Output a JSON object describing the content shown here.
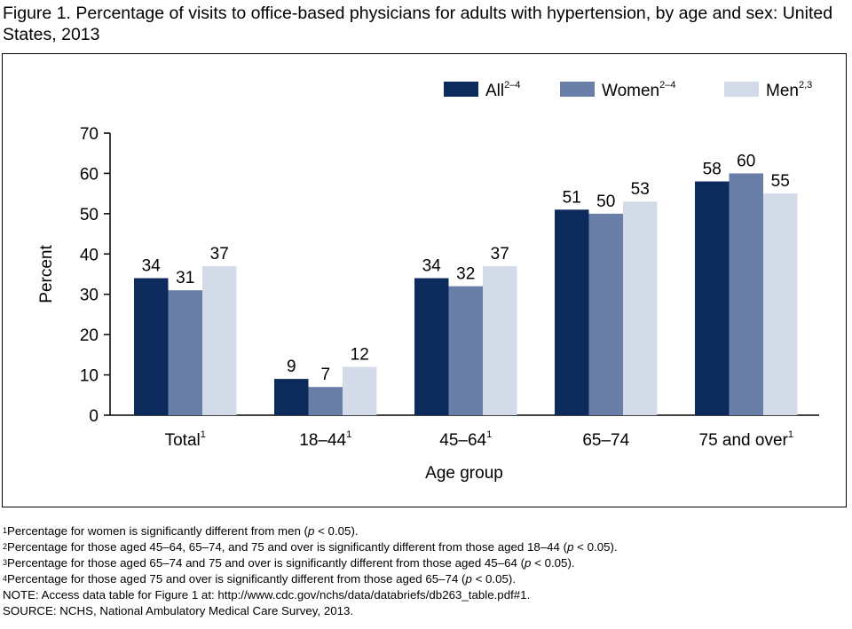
{
  "title": "Figure 1. Percentage of visits to office-based physicians for adults with hypertension, by age and sex: United States, 2013",
  "chart_data": {
    "type": "bar",
    "categories": [
      {
        "label": "Total",
        "sup": "1"
      },
      {
        "label": "18–44",
        "sup": "1"
      },
      {
        "label": "45–64",
        "sup": "1"
      },
      {
        "label": "65–74",
        "sup": ""
      },
      {
        "label": "75 and over",
        "sup": "1"
      }
    ],
    "series": [
      {
        "name": "All",
        "sup": "2–4",
        "color": "#0d2a5c",
        "values": [
          34,
          9,
          34,
          51,
          58
        ]
      },
      {
        "name": "Women",
        "sup": "2–4",
        "color": "#6a7fa8",
        "values": [
          31,
          7,
          32,
          50,
          60
        ]
      },
      {
        "name": "Men",
        "sup": "2,3",
        "color": "#d3dbe9",
        "values": [
          37,
          12,
          37,
          53,
          55
        ]
      }
    ],
    "xlabel": "Age group",
    "ylabel": "Percent",
    "ylim": [
      0,
      70
    ],
    "yticks": [
      "0",
      "10",
      "20",
      "30",
      "40",
      "50",
      "60",
      "70"
    ],
    "grid": false,
    "legend": "top-right"
  },
  "footnotes": [
    {
      "sup": "1",
      "parts": [
        {
          "t": "Percentage for women is significantly different from men ("
        },
        {
          "t": "p",
          "i": true
        },
        {
          "t": " < 0.05)."
        }
      ]
    },
    {
      "sup": "2",
      "parts": [
        {
          "t": "Percentage for those aged 45–64, 65–74, and 75 and over is significantly different from those aged 18–44 ("
        },
        {
          "t": "p",
          "i": true
        },
        {
          "t": " < 0.05)."
        }
      ]
    },
    {
      "sup": "3",
      "parts": [
        {
          "t": "Percentage for those aged 65–74 and 75 and over is significantly different from those aged 45–64 ("
        },
        {
          "t": "p",
          "i": true
        },
        {
          "t": " < 0.05)."
        }
      ]
    },
    {
      "sup": "4",
      "parts": [
        {
          "t": "Percentage for those aged 75 and over is significantly different from those aged 65–74 ("
        },
        {
          "t": "p",
          "i": true
        },
        {
          "t": " < 0.05)."
        }
      ]
    },
    {
      "sup": "",
      "parts": [
        {
          "t": "NOTE: Access data table for Figure 1 at: http://www.cdc.gov/nchs/data/databriefs/db263_table.pdf#1."
        }
      ]
    },
    {
      "sup": "",
      "parts": [
        {
          "t": "SOURCE: NCHS, National Ambulatory Medical Care Survey, 2013."
        }
      ]
    }
  ]
}
